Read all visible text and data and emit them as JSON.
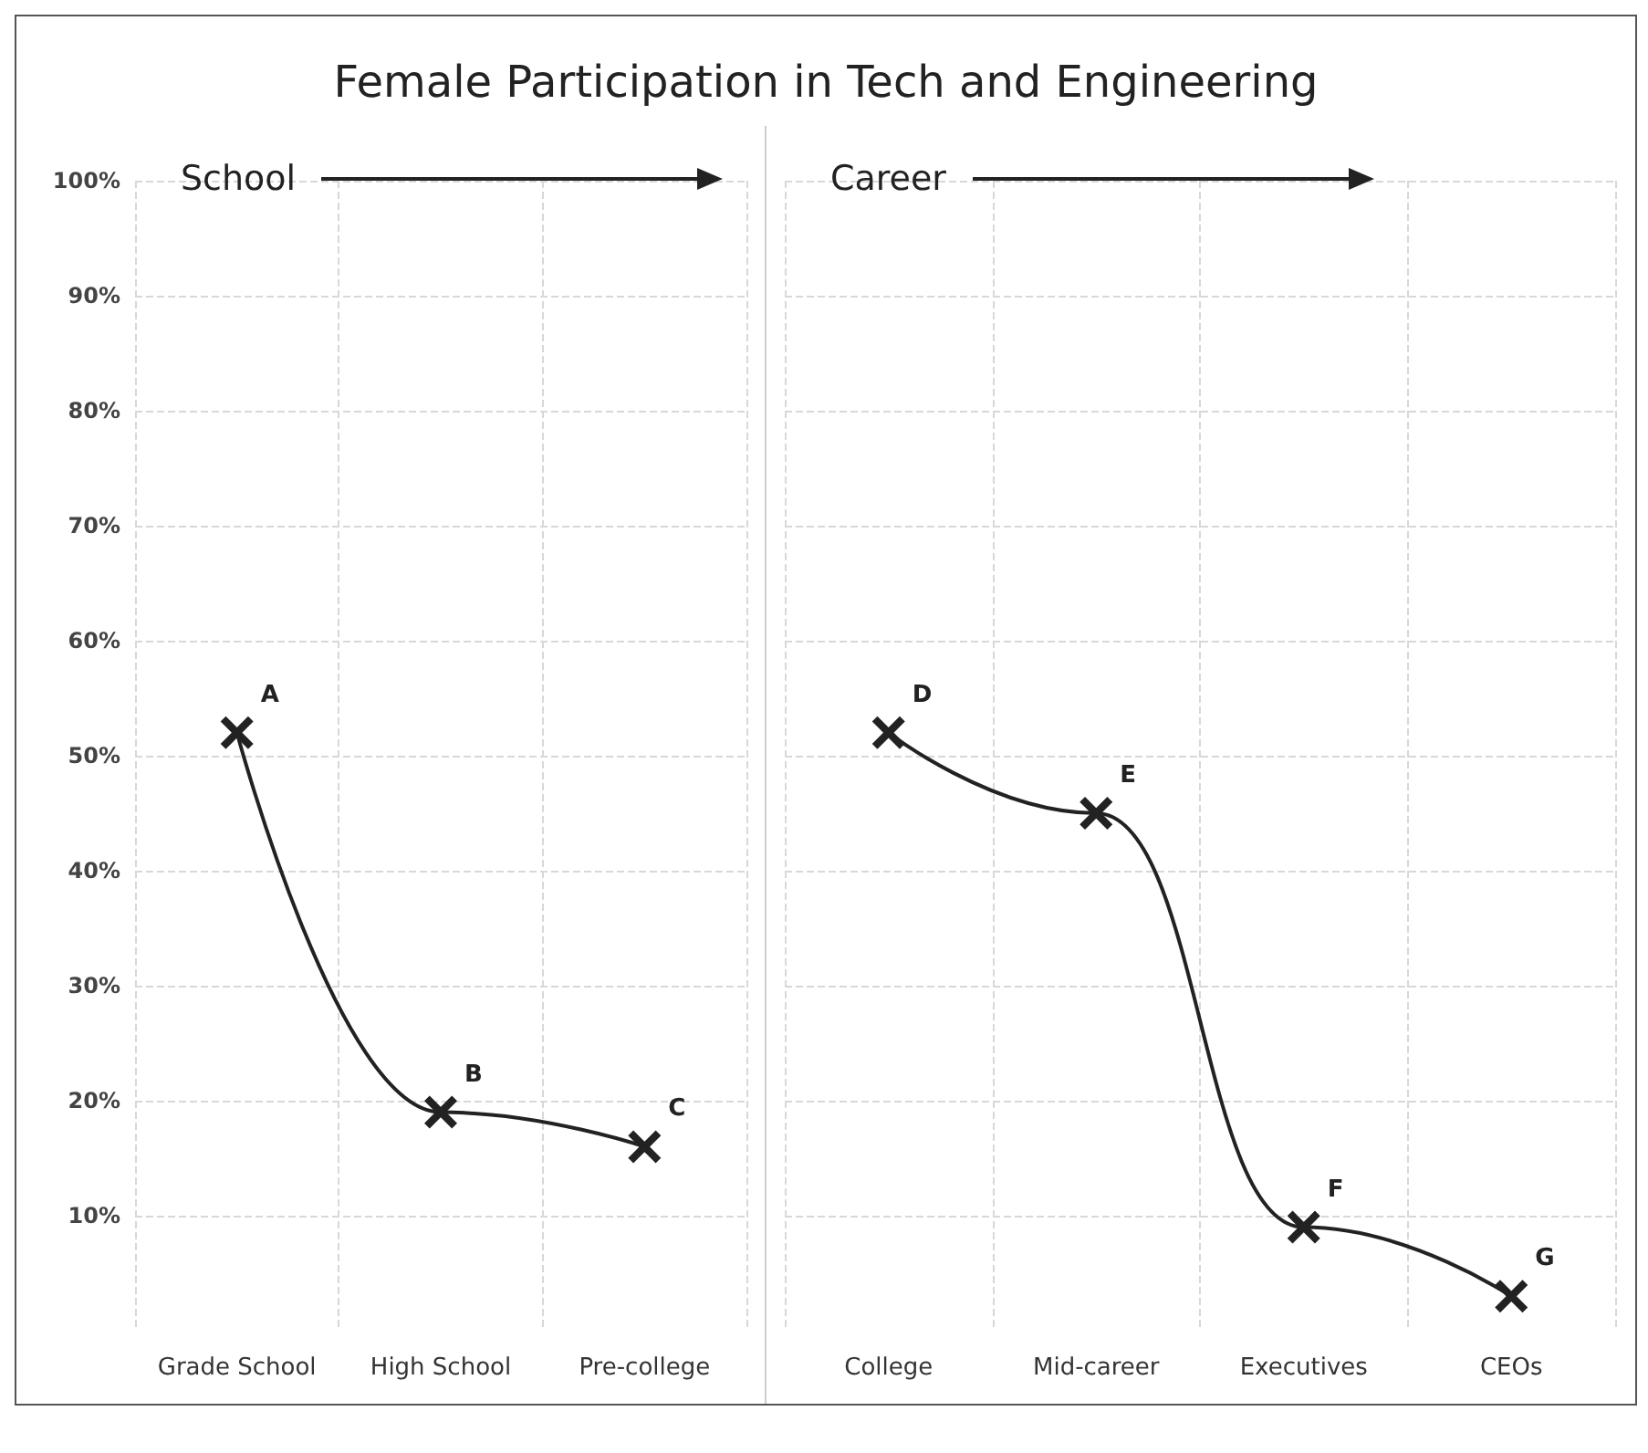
{
  "chart_data": [
    {
      "type": "line",
      "title": "Female Participation in Tech and Engineering",
      "categories": [
        "Grade School",
        "High School",
        "Pre-college"
      ],
      "series": [
        {
          "color": "#222222",
          "values": [
            52,
            19,
            16
          ],
          "value_labels": [
            "A",
            "B",
            "C"
          ]
        }
      ],
      "ylim": [
        0,
        100
      ],
      "yticks": [
        {
          "value": 10,
          "label": "10%"
        },
        {
          "value": 20,
          "label": "20%"
        },
        {
          "value": 30,
          "label": "30%"
        },
        {
          "value": 40,
          "label": "40%"
        },
        {
          "value": 50,
          "label": "50%"
        },
        {
          "value": 60,
          "label": "60%"
        },
        {
          "value": 70,
          "label": "70%"
        },
        {
          "value": 80,
          "label": "80%"
        },
        {
          "value": 90,
          "label": "90%"
        },
        {
          "value": 100,
          "label": "100%"
        }
      ],
      "grid": true,
      "marker": "cross",
      "annotations": [
        "School"
      ]
    },
    {
      "type": "line",
      "categories": [
        "College",
        "Mid-career",
        "Executives",
        "CEOs"
      ],
      "series": [
        {
          "color": "#222222",
          "values": [
            52,
            45,
            9,
            3
          ],
          "value_labels": [
            "D",
            "E",
            "F",
            "G"
          ]
        }
      ],
      "ylim": [
        0,
        100
      ],
      "yticks": [
        10,
        20,
        30,
        40,
        50,
        60,
        70,
        80,
        90,
        100
      ],
      "grid": true,
      "marker": "cross",
      "tick_labels": "x",
      "annotations": [
        "Career"
      ]
    }
  ]
}
